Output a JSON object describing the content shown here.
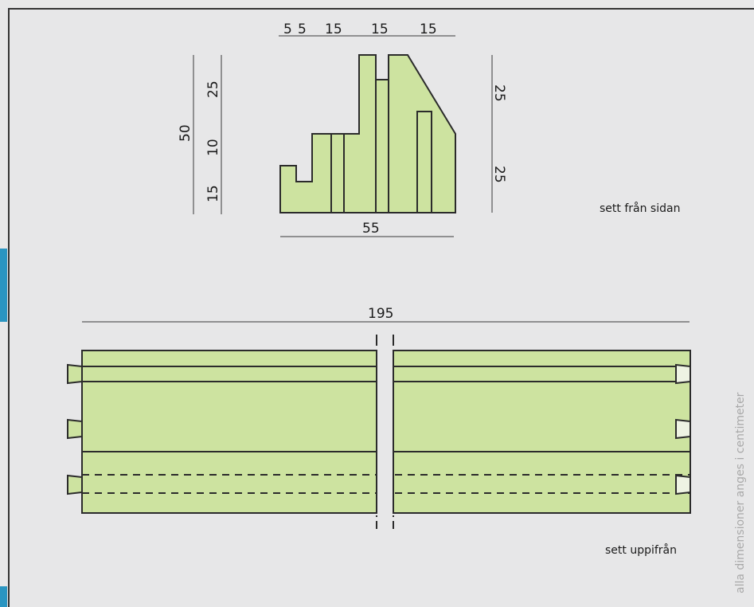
{
  "colors": {
    "background": "#e7e7e8",
    "frame": "#333333",
    "part_fill": "#cde3a0",
    "accent": "#2a95c1",
    "note": "#a9a9a9"
  },
  "side_view": {
    "label": "sett från sidan",
    "top_dims": [
      "5",
      "5",
      "15",
      "15",
      "15"
    ],
    "bottom_dim": "55",
    "left_total": "50",
    "left_dims": [
      "25",
      "10",
      "15"
    ],
    "right_dims": [
      "25",
      "25"
    ]
  },
  "top_view": {
    "label": "sett uppifrån",
    "length_dim": "195"
  },
  "note": "alla dimensioner anges i centimeter"
}
